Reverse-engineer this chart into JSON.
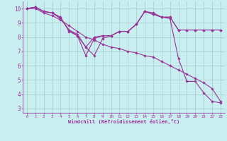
{
  "xlabel": "Windchill (Refroidissement éolien,°C)",
  "background_color": "#c8eef0",
  "line_color": "#993399",
  "grid_color": "#a8c8cc",
  "xlim": [
    -0.5,
    23.5
  ],
  "ylim": [
    2.7,
    10.5
  ],
  "xticks": [
    0,
    1,
    2,
    3,
    4,
    5,
    6,
    7,
    8,
    9,
    10,
    11,
    12,
    13,
    14,
    15,
    16,
    17,
    18,
    19,
    20,
    21,
    22,
    23
  ],
  "yticks": [
    3,
    4,
    5,
    6,
    7,
    8,
    9,
    10
  ],
  "lines": [
    {
      "x": [
        0,
        1,
        2,
        3,
        4,
        5,
        6,
        7,
        8,
        9,
        10,
        11,
        12,
        13,
        14,
        15,
        16,
        17,
        18,
        19,
        20,
        21,
        22,
        23
      ],
      "y": [
        10.0,
        10.1,
        9.8,
        9.7,
        9.4,
        8.4,
        8.1,
        6.7,
        7.9,
        8.1,
        8.1,
        8.4,
        8.4,
        8.9,
        9.8,
        9.7,
        9.4,
        9.3,
        6.5,
        4.9,
        4.9,
        4.1,
        3.5,
        3.4
      ]
    },
    {
      "x": [
        0,
        1,
        2,
        3,
        4,
        5,
        6,
        7,
        8,
        9,
        10,
        11,
        12,
        13,
        14,
        15,
        16,
        17,
        18,
        19,
        20,
        21,
        22,
        23
      ],
      "y": [
        10.0,
        10.1,
        9.8,
        9.7,
        9.3,
        8.5,
        8.2,
        7.3,
        8.0,
        8.1,
        8.1,
        8.4,
        8.4,
        8.9,
        9.8,
        9.6,
        9.4,
        9.4,
        8.5,
        8.5,
        8.5,
        8.5,
        8.5,
        8.5
      ]
    },
    {
      "x": [
        0,
        1,
        2,
        3,
        4,
        5,
        6,
        7,
        8,
        9,
        10,
        11,
        12,
        13,
        14,
        15,
        16,
        17,
        18,
        19,
        20,
        21,
        22,
        23
      ],
      "y": [
        10.0,
        10.1,
        9.8,
        9.7,
        9.3,
        8.5,
        8.1,
        7.3,
        6.7,
        7.9,
        8.1,
        8.4,
        8.4,
        8.9,
        9.8,
        9.6,
        9.4,
        9.4,
        8.5,
        8.5,
        8.5,
        8.5,
        8.5,
        8.5
      ]
    },
    {
      "x": [
        0,
        1,
        2,
        3,
        4,
        5,
        6,
        7,
        8,
        9,
        10,
        11,
        12,
        13,
        14,
        15,
        16,
        17,
        18,
        19,
        20,
        21,
        22,
        23
      ],
      "y": [
        10.0,
        10.0,
        9.7,
        9.5,
        9.2,
        8.8,
        8.4,
        8.0,
        7.8,
        7.5,
        7.3,
        7.2,
        7.0,
        6.9,
        6.7,
        6.6,
        6.3,
        6.0,
        5.7,
        5.4,
        5.1,
        4.8,
        4.4,
        3.5
      ]
    }
  ]
}
